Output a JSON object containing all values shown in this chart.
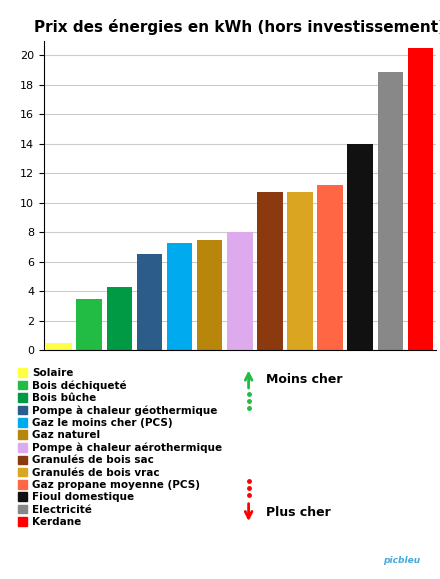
{
  "title": "Prix des énergies en kWh (hors investissement)",
  "categories": [
    "Solaire",
    "Bois déchiqueté",
    "Bois bûche",
    "Pompe à chaleur géothermique",
    "Gaz le moins cher (PCS)",
    "Gaz naturel",
    "Pompe à chaleur aérothermique",
    "Granulés de bois sac",
    "Granulés de bois vrac",
    "Gaz propane moyenne (PCS)",
    "Fioul domestique",
    "Electricité",
    "Kerdane"
  ],
  "values": [
    0.5,
    3.5,
    4.3,
    6.5,
    7.3,
    7.5,
    8.0,
    10.7,
    10.7,
    11.2,
    14.0,
    18.9,
    20.5
  ],
  "colors": [
    "#FFFF44",
    "#22BB44",
    "#009944",
    "#2B5C8A",
    "#00AAEE",
    "#B8860B",
    "#DDAAEE",
    "#8B3A0F",
    "#DAA520",
    "#FF6644",
    "#111111",
    "#888888",
    "#FF0000"
  ],
  "ylim": [
    0,
    21
  ],
  "yticks": [
    0,
    2,
    4,
    6,
    8,
    10,
    12,
    14,
    16,
    18,
    20
  ],
  "legend_labels": [
    "Solaire",
    "Bois déchiqueté",
    "Bois bûche",
    "Pompe à chaleur géothermique",
    "Gaz le moins cher (PCS)",
    "Gaz naturel",
    "Pompe à chaleur aérothermique",
    "Granulés de bois sac",
    "Granulés de bois vrac",
    "Gaz propane moyenne (PCS)",
    "Fioul domestique",
    "Electricité",
    "Kerdane"
  ],
  "moins_cher_text": "Moins cher",
  "plus_cher_text": "Plus cher",
  "background_color": "#FFFFFF",
  "grid_color": "#CCCCCC",
  "title_fontsize": 11,
  "legend_fontsize": 7.5,
  "watermark": "picbleu"
}
